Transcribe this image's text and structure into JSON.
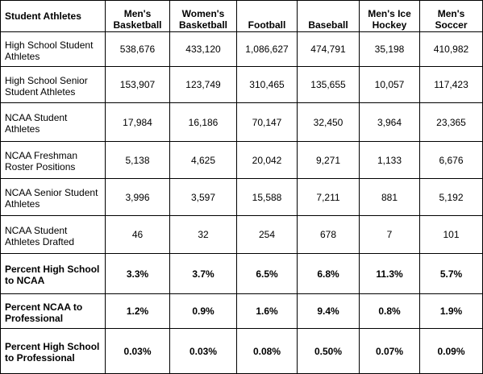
{
  "table": {
    "header": [
      "Student Athletes",
      "Men's Basketball",
      "Women's Basketball",
      "Football",
      "Baseball",
      "Men's Ice Hockey",
      "Men's Soccer"
    ],
    "rows": [
      [
        "High School Student Athletes",
        "538,676",
        "433,120",
        "1,086,627",
        "474,791",
        "35,198",
        "410,982"
      ],
      [
        "High School Senior Student Athletes",
        "153,907",
        "123,749",
        "310,465",
        "135,655",
        "10,057",
        "117,423"
      ],
      [
        "NCAA Student Athletes",
        "17,984",
        "16,186",
        "70,147",
        "32,450",
        "3,964",
        "23,365"
      ],
      [
        "NCAA Freshman Roster Positions",
        "5,138",
        "4,625",
        "20,042",
        "9,271",
        "1,133",
        "6,676"
      ],
      [
        "NCAA Senior Student Athletes",
        "3,996",
        "3,597",
        "15,588",
        "7,211",
        "881",
        "5,192"
      ],
      [
        "NCAA Student Athletes Drafted",
        "46",
        "32",
        "254",
        "678",
        "7",
        "101"
      ],
      [
        "Percent High School to NCAA",
        "3.3%",
        "3.7%",
        "6.5%",
        "6.8%",
        "11.3%",
        "5.7%"
      ],
      [
        "Percent NCAA to Professional",
        "1.2%",
        "0.9%",
        "1.6%",
        "9.4%",
        "0.8%",
        "1.9%"
      ],
      [
        "Percent High School to Professional",
        "0.03%",
        "0.03%",
        "0.08%",
        "0.50%",
        "0.07%",
        "0.09%"
      ]
    ]
  }
}
